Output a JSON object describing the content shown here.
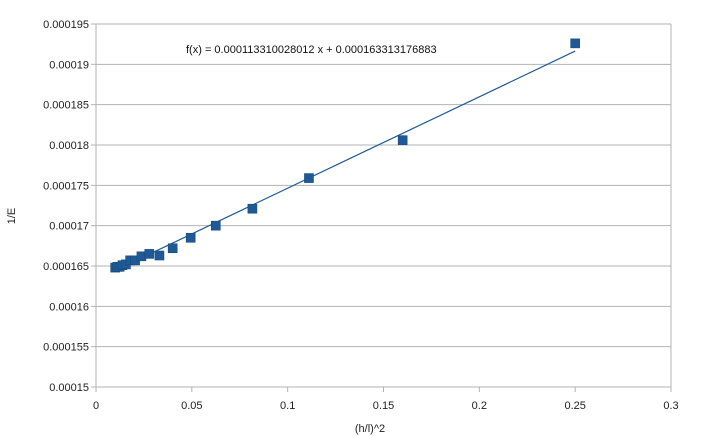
{
  "chart_data": {
    "type": "scatter",
    "title": "",
    "xlabel": "(h/l)^2",
    "ylabel": "1/E",
    "xlim": [
      0,
      0.3
    ],
    "ylim": [
      0.00015,
      0.000195
    ],
    "x_ticks": [
      0,
      0.05,
      0.1,
      0.15,
      0.2,
      0.25,
      0.3
    ],
    "y_ticks": [
      0.00015,
      0.000155,
      0.00016,
      0.000165,
      0.00017,
      0.000175,
      0.00018,
      0.000185,
      0.00019,
      0.000195
    ],
    "x_tick_labels": [
      "0",
      "0.05",
      "0.1",
      "0.15",
      "0.2",
      "0.25",
      "0.3"
    ],
    "y_tick_labels": [
      "0.00015",
      "0.000155",
      "0.00016",
      "0.000165",
      "0.00017",
      "0.000175",
      "0.00018",
      "0.000185",
      "0.00019",
      "0.000195"
    ],
    "grid": "horizontal",
    "marker_color": "#1f5a96",
    "trendline_color": "#1f5a96",
    "trendline": {
      "slope": 0.000113310028012,
      "intercept": 0.000163313176883,
      "x_range": [
        0.01,
        0.25
      ],
      "equation_label": "f(x) = 0.000113310028012 x + 0.000163313176883"
    },
    "series": [
      {
        "points": [
          {
            "x": 0.01,
            "y": 0.0001648
          },
          {
            "x": 0.0111,
            "y": 0.0001649
          },
          {
            "x": 0.0123,
            "y": 0.0001649
          },
          {
            "x": 0.0138,
            "y": 0.0001651
          },
          {
            "x": 0.0156,
            "y": 0.0001652
          },
          {
            "x": 0.0178,
            "y": 0.0001657
          },
          {
            "x": 0.0204,
            "y": 0.0001657
          },
          {
            "x": 0.0237,
            "y": 0.0001662
          },
          {
            "x": 0.0278,
            "y": 0.0001665
          },
          {
            "x": 0.0331,
            "y": 0.0001663
          },
          {
            "x": 0.04,
            "y": 0.0001672
          },
          {
            "x": 0.0494,
            "y": 0.0001685
          },
          {
            "x": 0.0625,
            "y": 0.00017
          },
          {
            "x": 0.0816,
            "y": 0.0001721
          },
          {
            "x": 0.1111,
            "y": 0.0001759
          },
          {
            "x": 0.16,
            "y": 0.0001806
          },
          {
            "x": 0.25,
            "y": 0.0001926
          }
        ]
      }
    ]
  }
}
